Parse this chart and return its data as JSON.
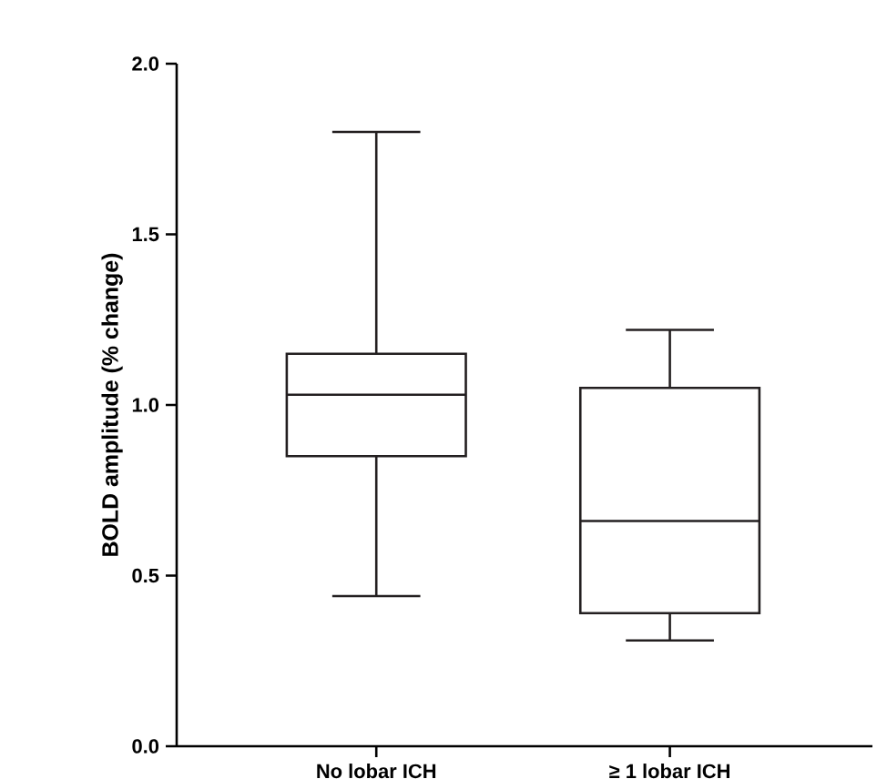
{
  "chart_data": {
    "type": "box",
    "ylabel": "BOLD amplitude (% change)",
    "categories": [
      "No lobar ICH",
      "≥ 1 lobar ICH"
    ],
    "boxes": [
      {
        "low": 0.44,
        "q1": 0.85,
        "median": 1.03,
        "q3": 1.15,
        "high": 1.8
      },
      {
        "low": 0.31,
        "q1": 0.39,
        "median": 0.66,
        "q3": 1.05,
        "high": 1.22
      }
    ],
    "color": "#231f20",
    "ylim": [
      0,
      2.0
    ],
    "yticks": [
      {
        "value": 0,
        "label": "0.0"
      },
      {
        "value": 0.5,
        "label": "0.5"
      },
      {
        "value": 1.0,
        "label": "1.0"
      },
      {
        "value": 1.5,
        "label": "1.5"
      },
      {
        "value": 2.0,
        "label": "2.0"
      }
    ]
  }
}
